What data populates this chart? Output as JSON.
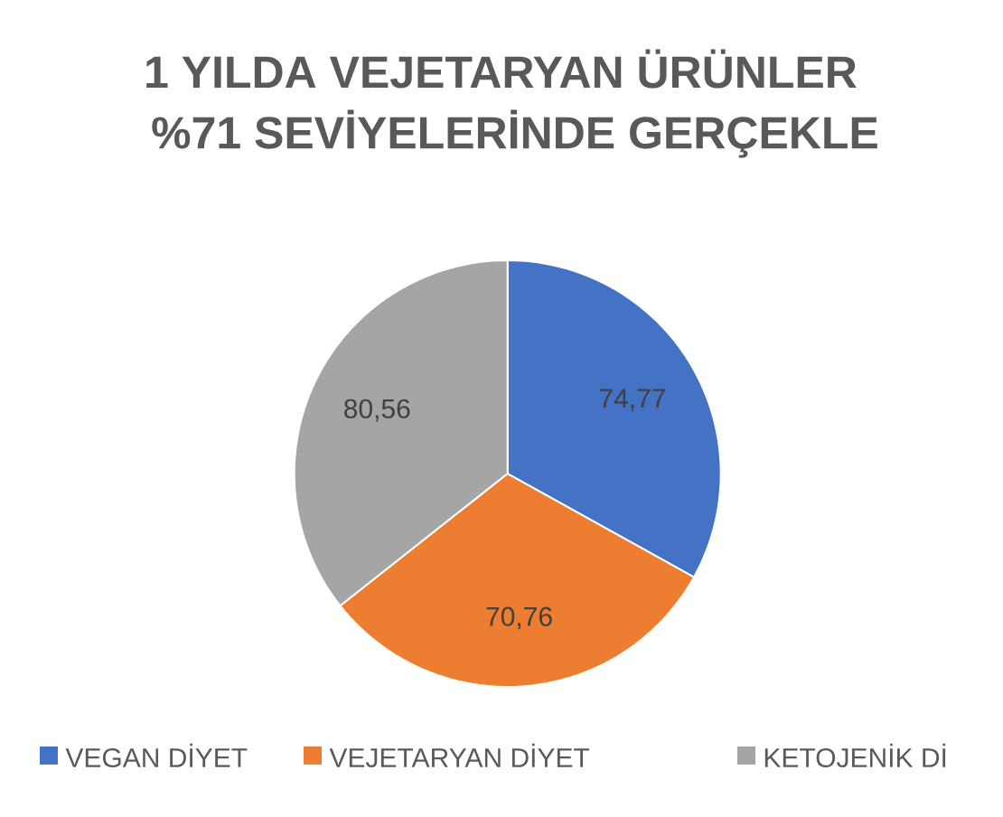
{
  "chart_data": {
    "type": "pie",
    "title": "1 YILDA VEJETARYAN ÜRÜNLER",
    "subtitle": "%71 SEVİYELERİNDE GERÇEKLE",
    "categories": [
      "VEGAN DİYET",
      "VEJETARYAN DİYET",
      "KETOJENİK Dİ"
    ],
    "values": [
      74.77,
      70.76,
      80.56
    ],
    "colors": [
      "#4472c4",
      "#ed7d31",
      "#a5a5a5"
    ],
    "value_labels": [
      "74,77",
      "70,76",
      "80,56"
    ],
    "legend": "bottom"
  }
}
